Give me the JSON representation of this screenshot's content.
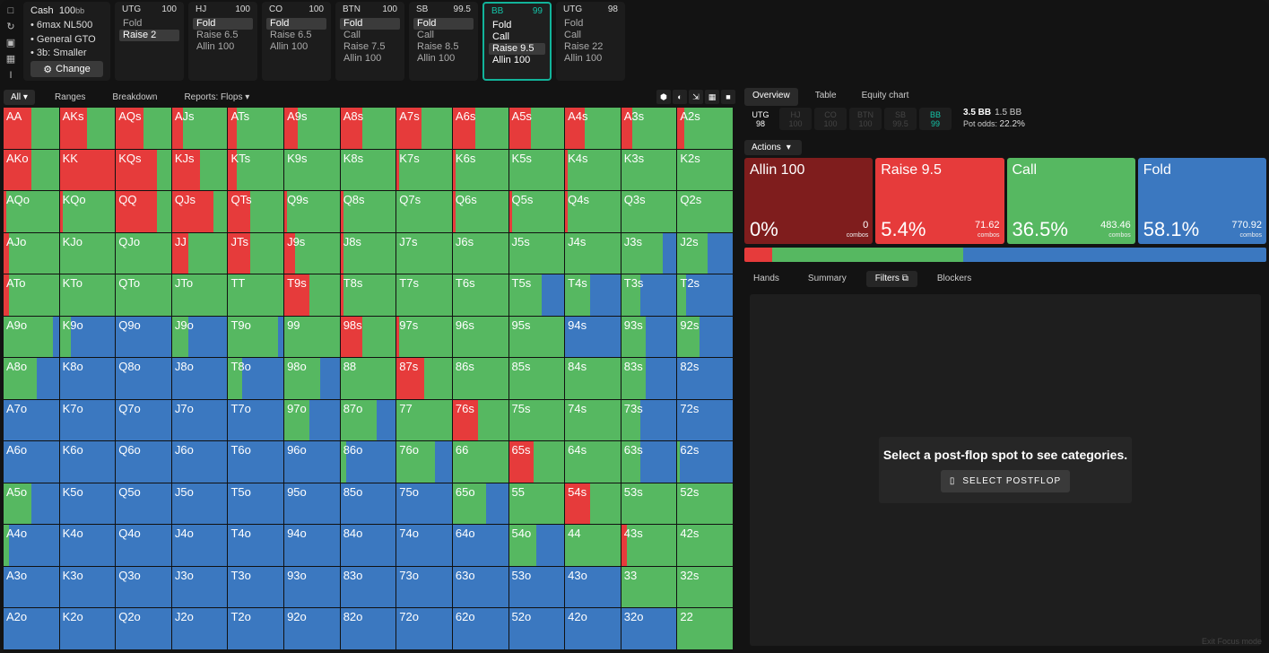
{
  "colors": {
    "allin": "#7f1d1d",
    "raise": "#e63b3b",
    "call": "#56b861",
    "fold": "#3b78c0",
    "accent": "#14c4a8"
  },
  "sidebar": {
    "icons": [
      "bookmark-icon",
      "history-icon",
      "save-icon",
      "gamepad-icon",
      "text-cursor-icon"
    ]
  },
  "cash": {
    "title": "Cash",
    "stack": "100",
    "stack_unit": "bb",
    "items": [
      "• 6max NL500",
      "• General GTO",
      "• 3b: Smaller"
    ],
    "change_label": "Change"
  },
  "positions": [
    {
      "name": "UTG",
      "stack": "100",
      "actions": [
        {
          "label": "Fold",
          "sel": false
        },
        {
          "label": "Raise 2",
          "sel": true
        }
      ]
    },
    {
      "name": "HJ",
      "stack": "100",
      "actions": [
        {
          "label": "Fold",
          "sel": true
        },
        {
          "label": "Raise 6.5",
          "sel": false
        },
        {
          "label": "Allin 100",
          "sel": false
        }
      ]
    },
    {
      "name": "CO",
      "stack": "100",
      "actions": [
        {
          "label": "Fold",
          "sel": true
        },
        {
          "label": "Raise 6.5",
          "sel": false
        },
        {
          "label": "Allin 100",
          "sel": false
        }
      ]
    },
    {
      "name": "BTN",
      "stack": "100",
      "actions": [
        {
          "label": "Fold",
          "sel": true
        },
        {
          "label": "Call",
          "sel": false
        },
        {
          "label": "Raise 7.5",
          "sel": false
        },
        {
          "label": "Allin 100",
          "sel": false
        }
      ]
    },
    {
      "name": "SB",
      "stack": "99.5",
      "actions": [
        {
          "label": "Fold",
          "sel": true
        },
        {
          "label": "Call",
          "sel": false
        },
        {
          "label": "Raise 8.5",
          "sel": false
        },
        {
          "label": "Allin 100",
          "sel": false
        }
      ]
    },
    {
      "name": "BB",
      "stack": "99",
      "active": true,
      "actions": [
        {
          "label": "Fold",
          "sel": false
        },
        {
          "label": "Call",
          "sel": false
        },
        {
          "label": "Raise 9.5",
          "sel": true
        },
        {
          "label": "Allin 100",
          "sel": false
        }
      ]
    },
    {
      "name": "UTG",
      "stack": "98",
      "actions": [
        {
          "label": "Fold",
          "sel": false
        },
        {
          "label": "Call",
          "sel": false
        },
        {
          "label": "Raise 22",
          "sel": false
        },
        {
          "label": "Allin 100",
          "sel": false
        }
      ]
    }
  ],
  "left_tabs": {
    "all": "All",
    "ranges": "Ranges",
    "breakdown": "Breakdown",
    "reports": "Reports: Flops"
  },
  "view_icons": [
    "cube-icon",
    "contrast-icon",
    "compress-icon",
    "grid-icon",
    "square-icon"
  ],
  "range_grid": {
    "ranks": [
      "A",
      "K",
      "Q",
      "J",
      "T",
      "9",
      "8",
      "7",
      "6",
      "5",
      "4",
      "3",
      "2"
    ],
    "cells": [
      [
        [
          0,
          0.5,
          0.5,
          0
        ],
        [
          0,
          0.5,
          0.5,
          0
        ],
        [
          0,
          0.5,
          0.5,
          0
        ],
        [
          0,
          0.2,
          0.8,
          0
        ],
        [
          0,
          0.15,
          0.85,
          0
        ],
        [
          0,
          0.25,
          0.75,
          0
        ],
        [
          0,
          0.4,
          0.6,
          0
        ],
        [
          0,
          0.45,
          0.55,
          0
        ],
        [
          0,
          0.4,
          0.6,
          0
        ],
        [
          0,
          0.4,
          0.6,
          0
        ],
        [
          0,
          0.35,
          0.65,
          0
        ],
        [
          0,
          0.2,
          0.8,
          0
        ],
        [
          0,
          0.12,
          0.88,
          0
        ]
      ],
      [
        [
          0,
          0.5,
          0.5,
          0
        ],
        [
          0,
          1,
          0,
          0
        ],
        [
          0,
          0.75,
          0.25,
          0
        ],
        [
          0,
          0.5,
          0.5,
          0
        ],
        [
          0,
          0.15,
          0.85,
          0
        ],
        [
          0,
          0,
          1,
          0
        ],
        [
          0,
          0,
          1,
          0
        ],
        [
          0,
          0.05,
          0.95,
          0
        ],
        [
          0,
          0.05,
          0.95,
          0
        ],
        [
          0,
          0,
          1,
          0
        ],
        [
          0,
          0.05,
          0.95,
          0
        ],
        [
          0,
          0,
          1,
          0
        ],
        [
          0,
          0,
          1,
          0
        ]
      ],
      [
        [
          0,
          0.05,
          0.95,
          0
        ],
        [
          0,
          0.05,
          0.95,
          0
        ],
        [
          0,
          0.75,
          0.25,
          0
        ],
        [
          0,
          0.75,
          0.25,
          0
        ],
        [
          0,
          0.4,
          0.6,
          0
        ],
        [
          0,
          0.05,
          0.95,
          0
        ],
        [
          0,
          0.05,
          0.95,
          0
        ],
        [
          0,
          0,
          1,
          0
        ],
        [
          0,
          0.05,
          0.95,
          0
        ],
        [
          0,
          0.05,
          0.95,
          0
        ],
        [
          0,
          0.05,
          0.95,
          0
        ],
        [
          0,
          0,
          1,
          0
        ],
        [
          0,
          0,
          1,
          0
        ]
      ],
      [
        [
          0,
          0.1,
          0.9,
          0
        ],
        [
          0,
          0,
          1,
          0
        ],
        [
          0,
          0,
          1,
          0
        ],
        [
          0,
          0.3,
          0.7,
          0
        ],
        [
          0,
          0.4,
          0.6,
          0
        ],
        [
          0,
          0.2,
          0.8,
          0
        ],
        [
          0,
          0.05,
          0.95,
          0
        ],
        [
          0,
          0,
          1,
          0
        ],
        [
          0,
          0,
          1,
          0
        ],
        [
          0,
          0,
          1,
          0
        ],
        [
          0,
          0,
          1,
          0
        ],
        [
          0,
          0,
          0.75,
          0.25
        ],
        [
          0,
          0,
          0.55,
          0.45
        ]
      ],
      [
        [
          0,
          0.1,
          0.9,
          0
        ],
        [
          0,
          0,
          1,
          0
        ],
        [
          0,
          0,
          1,
          0
        ],
        [
          0,
          0,
          1,
          0
        ],
        [
          0,
          0,
          1,
          0
        ],
        [
          0,
          0.45,
          0.55,
          0
        ],
        [
          0,
          0.05,
          0.95,
          0
        ],
        [
          0,
          0,
          1,
          0
        ],
        [
          0,
          0,
          1,
          0
        ],
        [
          0,
          0,
          0.6,
          0.4
        ],
        [
          0,
          0,
          0.45,
          0.55
        ],
        [
          0,
          0,
          0.35,
          0.65
        ],
        [
          0,
          0,
          0.15,
          0.85
        ]
      ],
      [
        [
          0,
          0,
          0.9,
          0.1
        ],
        [
          0,
          0,
          0.2,
          0.8
        ],
        [
          0,
          0,
          0,
          1
        ],
        [
          0,
          0,
          0.3,
          0.7
        ],
        [
          0,
          0,
          0.9,
          0.1
        ],
        [
          0,
          0,
          1,
          0
        ],
        [
          0,
          0.4,
          0.6,
          0
        ],
        [
          0,
          0.05,
          0.95,
          0
        ],
        [
          0,
          0,
          1,
          0
        ],
        [
          0,
          0,
          1,
          0
        ],
        [
          0,
          0,
          0,
          1
        ],
        [
          0,
          0,
          0.45,
          0.55
        ],
        [
          0,
          0,
          0.4,
          0.6
        ]
      ],
      [
        [
          0,
          0,
          0.6,
          0.4
        ],
        [
          0,
          0,
          0,
          1
        ],
        [
          0,
          0,
          0,
          1
        ],
        [
          0,
          0,
          0,
          1
        ],
        [
          0,
          0,
          0.25,
          0.75
        ],
        [
          0,
          0,
          0.65,
          0.35
        ],
        [
          0,
          0,
          1,
          0
        ],
        [
          0,
          0.5,
          0.5,
          0
        ],
        [
          0,
          0,
          1,
          0
        ],
        [
          0,
          0,
          1,
          0
        ],
        [
          0,
          0,
          1,
          0
        ],
        [
          0,
          0,
          0.45,
          0.55
        ],
        [
          0,
          0,
          0,
          1
        ]
      ],
      [
        [
          0,
          0,
          0,
          1
        ],
        [
          0,
          0,
          0,
          1
        ],
        [
          0,
          0,
          0,
          1
        ],
        [
          0,
          0,
          0,
          1
        ],
        [
          0,
          0,
          0,
          1
        ],
        [
          0,
          0,
          0.45,
          0.55
        ],
        [
          0,
          0,
          0.65,
          0.35
        ],
        [
          0,
          0,
          1,
          0
        ],
        [
          0,
          0.45,
          0.55,
          0
        ],
        [
          0,
          0,
          1,
          0
        ],
        [
          0,
          0,
          1,
          0
        ],
        [
          0,
          0,
          0.35,
          0.65
        ],
        [
          0,
          0,
          0,
          1
        ]
      ],
      [
        [
          0,
          0,
          0,
          1
        ],
        [
          0,
          0,
          0,
          1
        ],
        [
          0,
          0,
          0,
          1
        ],
        [
          0,
          0,
          0,
          1
        ],
        [
          0,
          0,
          0,
          1
        ],
        [
          0,
          0,
          0,
          1
        ],
        [
          0,
          0,
          0.1,
          0.9
        ],
        [
          0,
          0,
          0.7,
          0.3
        ],
        [
          0,
          0,
          1,
          0
        ],
        [
          0,
          0.45,
          0.55,
          0
        ],
        [
          0,
          0,
          1,
          0
        ],
        [
          0,
          0,
          0.35,
          0.65
        ],
        [
          0,
          0,
          0.05,
          0.95
        ]
      ],
      [
        [
          0,
          0,
          0.5,
          0.5
        ],
        [
          0,
          0,
          0,
          1
        ],
        [
          0,
          0,
          0,
          1
        ],
        [
          0,
          0,
          0,
          1
        ],
        [
          0,
          0,
          0,
          1
        ],
        [
          0,
          0,
          0,
          1
        ],
        [
          0,
          0,
          0,
          1
        ],
        [
          0,
          0,
          0,
          1
        ],
        [
          0,
          0,
          0.6,
          0.4
        ],
        [
          0,
          0,
          1,
          0
        ],
        [
          0,
          0.45,
          0.55,
          0
        ],
        [
          0,
          0,
          1,
          0
        ],
        [
          0,
          0,
          1,
          0
        ]
      ],
      [
        [
          0,
          0,
          0.1,
          0.9
        ],
        [
          0,
          0,
          0,
          1
        ],
        [
          0,
          0,
          0,
          1
        ],
        [
          0,
          0,
          0,
          1
        ],
        [
          0,
          0,
          0,
          1
        ],
        [
          0,
          0,
          0,
          1
        ],
        [
          0,
          0,
          0,
          1
        ],
        [
          0,
          0,
          0,
          1
        ],
        [
          0,
          0,
          0,
          1
        ],
        [
          0,
          0,
          0.5,
          0.5
        ],
        [
          0,
          0,
          1,
          0
        ],
        [
          0,
          0.1,
          0.9,
          0
        ],
        [
          0,
          0,
          1,
          0
        ]
      ],
      [
        [
          0,
          0,
          0,
          1
        ],
        [
          0,
          0,
          0,
          1
        ],
        [
          0,
          0,
          0,
          1
        ],
        [
          0,
          0,
          0,
          1
        ],
        [
          0,
          0,
          0,
          1
        ],
        [
          0,
          0,
          0,
          1
        ],
        [
          0,
          0,
          0,
          1
        ],
        [
          0,
          0,
          0,
          1
        ],
        [
          0,
          0,
          0,
          1
        ],
        [
          0,
          0,
          0,
          1
        ],
        [
          0,
          0,
          0,
          1
        ],
        [
          0,
          0,
          1,
          0
        ],
        [
          0,
          0,
          1,
          0
        ]
      ],
      [
        [
          0,
          0,
          0,
          1
        ],
        [
          0,
          0,
          0,
          1
        ],
        [
          0,
          0,
          0,
          1
        ],
        [
          0,
          0,
          0,
          1
        ],
        [
          0,
          0,
          0,
          1
        ],
        [
          0,
          0,
          0,
          1
        ],
        [
          0,
          0,
          0,
          1
        ],
        [
          0,
          0,
          0,
          1
        ],
        [
          0,
          0,
          0,
          1
        ],
        [
          0,
          0,
          0,
          1
        ],
        [
          0,
          0,
          0,
          1
        ],
        [
          0,
          0,
          0,
          1
        ],
        [
          0,
          0,
          1,
          0
        ]
      ]
    ]
  },
  "right_tabs": {
    "overview": "Overview",
    "table": "Table",
    "equity": "Equity chart"
  },
  "seat_chips": [
    {
      "name": "UTG",
      "stack": "98",
      "state": "on"
    },
    {
      "name": "HJ",
      "stack": "100",
      "state": "off"
    },
    {
      "name": "CO",
      "stack": "100",
      "state": "off"
    },
    {
      "name": "BTN",
      "stack": "100",
      "state": "off"
    },
    {
      "name": "SB",
      "stack": "99.5",
      "state": "off"
    },
    {
      "name": "BB",
      "stack": "99",
      "state": "bb"
    }
  ],
  "pot": {
    "main": "3.5 BB",
    "side": "1.5 BB",
    "odds_label": "Pot odds:",
    "odds": "22.2%"
  },
  "actions_label": "Actions",
  "action_cards": [
    {
      "name": "Allin 100",
      "pct": "0%",
      "combos": "0",
      "combos_label": "combos",
      "color": "#7f1d1d",
      "freq": 0
    },
    {
      "name": "Raise 9.5",
      "pct": "5.4%",
      "combos": "71.62",
      "combos_label": "combos",
      "color": "#e63b3b",
      "freq": 0.054
    },
    {
      "name": "Call",
      "pct": "36.5%",
      "combos": "483.46",
      "combos_label": "combos",
      "color": "#56b861",
      "freq": 0.365
    },
    {
      "name": "Fold",
      "pct": "58.1%",
      "combos": "770.92",
      "combos_label": "combos",
      "color": "#3b78c0",
      "freq": 0.581
    }
  ],
  "sub_tabs": {
    "hands": "Hands",
    "summary": "Summary",
    "filters": "Filters",
    "blockers": "Blockers"
  },
  "empty_state": {
    "message": "Select a post-flop spot to see categories.",
    "button": "SELECT POSTFLOP"
  },
  "exit_focus": "Exit Focus mode"
}
